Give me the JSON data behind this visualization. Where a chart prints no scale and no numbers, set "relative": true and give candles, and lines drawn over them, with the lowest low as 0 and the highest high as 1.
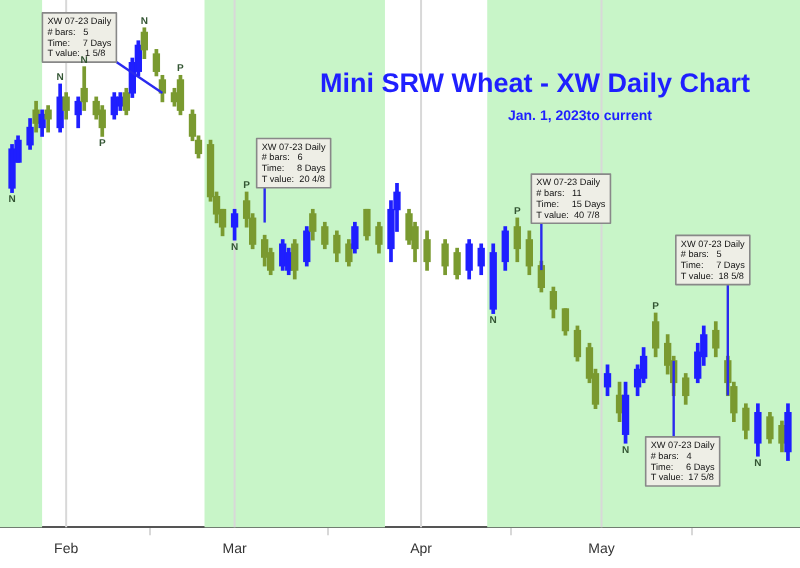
{
  "chart_data": {
    "type": "candlestick",
    "relative": true,
    "title": "Mini SRW Wheat - XW Daily Chart",
    "subtitle": "Jan. 1, 2023to current",
    "x": [
      "2023-01-23",
      "2023-01-24",
      "2023-01-26",
      "2023-01-27",
      "2023-01-28",
      "2023-01-29",
      "2023-01-31",
      "2023-02-01",
      "2023-02-03",
      "2023-02-04",
      "2023-02-06",
      "2023-02-07",
      "2023-02-09",
      "2023-02-10",
      "2023-02-11",
      "2023-02-12",
      "2023-02-13",
      "2023-02-14",
      "2023-02-16",
      "2023-02-17",
      "2023-02-19",
      "2023-02-20",
      "2023-02-22",
      "2023-02-23",
      "2023-02-25",
      "2023-02-26",
      "2023-02-27",
      "2023-03-01",
      "2023-03-03",
      "2023-03-04",
      "2023-03-06",
      "2023-03-07",
      "2023-03-09",
      "2023-03-10",
      "2023-03-11",
      "2023-03-13",
      "2023-03-14",
      "2023-03-16",
      "2023-03-18",
      "2023-03-20",
      "2023-03-21",
      "2023-03-23",
      "2023-03-25",
      "2023-03-27",
      "2023-03-28",
      "2023-03-30",
      "2023-03-31",
      "2023-04-02",
      "2023-04-05",
      "2023-04-07",
      "2023-04-09",
      "2023-04-11",
      "2023-04-13",
      "2023-04-15",
      "2023-04-17",
      "2023-04-19",
      "2023-04-21",
      "2023-04-23",
      "2023-04-25",
      "2023-04-27",
      "2023-04-29",
      "2023-04-30",
      "2023-05-02",
      "2023-05-04",
      "2023-05-05",
      "2023-05-07",
      "2023-05-08",
      "2023-05-10",
      "2023-05-12",
      "2023-05-13",
      "2023-05-15",
      "2023-05-17",
      "2023-05-18",
      "2023-05-20",
      "2023-05-22",
      "2023-05-23",
      "2023-05-25",
      "2023-05-27",
      "2023-05-29",
      "2023-05-31",
      "2023-06-01"
    ],
    "ohlc": [
      [
        0.63,
        0.73,
        0.62,
        0.72
      ],
      [
        0.69,
        0.75,
        0.69,
        0.74
      ],
      [
        0.73,
        0.79,
        0.72,
        0.77
      ],
      [
        0.81,
        0.83,
        0.76,
        0.78
      ],
      [
        0.77,
        0.81,
        0.75,
        0.8
      ],
      [
        0.81,
        0.82,
        0.76,
        0.79
      ],
      [
        0.77,
        0.87,
        0.76,
        0.84
      ],
      [
        0.84,
        0.85,
        0.79,
        0.81
      ],
      [
        0.8,
        0.84,
        0.77,
        0.83
      ],
      [
        0.86,
        0.91,
        0.81,
        0.83
      ],
      [
        0.83,
        0.84,
        0.79,
        0.8
      ],
      [
        0.81,
        0.82,
        0.75,
        0.77
      ],
      [
        0.8,
        0.85,
        0.79,
        0.84
      ],
      [
        0.82,
        0.85,
        0.81,
        0.84
      ],
      [
        0.85,
        0.86,
        0.8,
        0.81
      ],
      [
        0.85,
        0.93,
        0.84,
        0.92
      ],
      [
        0.9,
        0.97,
        0.89,
        0.96
      ],
      [
        0.99,
        1.0,
        0.93,
        0.95
      ],
      [
        0.94,
        0.95,
        0.89,
        0.9
      ],
      [
        0.88,
        0.89,
        0.83,
        0.85
      ],
      [
        0.85,
        0.86,
        0.82,
        0.83
      ],
      [
        0.88,
        0.89,
        0.8,
        0.81
      ],
      [
        0.8,
        0.81,
        0.74,
        0.75
      ],
      [
        0.74,
        0.75,
        0.7,
        0.71
      ],
      [
        0.73,
        0.74,
        0.6,
        0.61
      ],
      [
        0.61,
        0.62,
        0.55,
        0.57
      ],
      [
        0.58,
        0.58,
        0.52,
        0.54
      ],
      [
        0.54,
        0.58,
        0.51,
        0.57
      ],
      [
        0.6,
        0.62,
        0.54,
        0.56
      ],
      [
        0.56,
        0.57,
        0.49,
        0.5
      ],
      [
        0.51,
        0.52,
        0.45,
        0.47
      ],
      [
        0.48,
        0.49,
        0.43,
        0.44
      ],
      [
        0.45,
        0.51,
        0.44,
        0.5
      ],
      [
        0.44,
        0.49,
        0.43,
        0.48
      ],
      [
        0.5,
        0.51,
        0.42,
        0.44
      ],
      [
        0.46,
        0.54,
        0.45,
        0.53
      ],
      [
        0.57,
        0.58,
        0.51,
        0.53
      ],
      [
        0.54,
        0.55,
        0.49,
        0.5
      ],
      [
        0.52,
        0.53,
        0.46,
        0.48
      ],
      [
        0.5,
        0.51,
        0.45,
        0.46
      ],
      [
        0.49,
        0.55,
        0.48,
        0.54
      ],
      [
        0.58,
        0.58,
        0.51,
        0.52
      ],
      [
        0.54,
        0.55,
        0.48,
        0.5
      ],
      [
        0.49,
        0.6,
        0.46,
        0.58
      ],
      [
        0.58,
        0.64,
        0.53,
        0.62
      ],
      [
        0.57,
        0.58,
        0.5,
        0.51
      ],
      [
        0.54,
        0.55,
        0.46,
        0.49
      ],
      [
        0.51,
        0.53,
        0.44,
        0.46
      ],
      [
        0.5,
        0.51,
        0.43,
        0.45
      ],
      [
        0.48,
        0.49,
        0.42,
        0.43
      ],
      [
        0.44,
        0.51,
        0.42,
        0.5
      ],
      [
        0.45,
        0.5,
        0.43,
        0.49
      ],
      [
        0.35,
        0.5,
        0.34,
        0.48
      ],
      [
        0.46,
        0.54,
        0.44,
        0.53
      ],
      [
        0.54,
        0.56,
        0.46,
        0.49
      ],
      [
        0.51,
        0.53,
        0.43,
        0.45
      ],
      [
        0.45,
        0.46,
        0.39,
        0.4
      ],
      [
        0.39,
        0.4,
        0.33,
        0.35
      ],
      [
        0.35,
        0.35,
        0.29,
        0.3
      ],
      [
        0.3,
        0.31,
        0.23,
        0.24
      ],
      [
        0.26,
        0.27,
        0.18,
        0.19
      ],
      [
        0.2,
        0.21,
        0.12,
        0.13
      ],
      [
        0.17,
        0.22,
        0.15,
        0.2
      ],
      [
        0.15,
        0.18,
        0.09,
        0.11
      ],
      [
        0.06,
        0.18,
        0.04,
        0.15
      ],
      [
        0.17,
        0.22,
        0.15,
        0.21
      ],
      [
        0.19,
        0.26,
        0.18,
        0.24
      ],
      [
        0.32,
        0.34,
        0.24,
        0.26
      ],
      [
        0.27,
        0.29,
        0.2,
        0.22
      ],
      [
        0.23,
        0.24,
        0.15,
        0.18
      ],
      [
        0.19,
        0.2,
        0.13,
        0.15
      ],
      [
        0.19,
        0.27,
        0.18,
        0.25
      ],
      [
        0.24,
        0.31,
        0.22,
        0.29
      ],
      [
        0.3,
        0.32,
        0.24,
        0.26
      ],
      [
        0.23,
        0.24,
        0.15,
        0.18
      ],
      [
        0.17,
        0.18,
        0.09,
        0.11
      ],
      [
        0.12,
        0.13,
        0.05,
        0.07
      ],
      [
        0.04,
        0.13,
        0.01,
        0.11
      ],
      [
        0.1,
        0.11,
        0.04,
        0.05
      ],
      [
        0.08,
        0.09,
        0.02,
        0.04
      ],
      [
        0.02,
        0.13,
        0,
        0.11
      ]
    ],
    "colors": [
      "#1f1fff",
      "#1f1fff",
      "#1f1fff",
      "#7a9a30",
      "#1f1fff",
      "#7a9a30",
      "#1f1fff",
      "#7a9a30",
      "#1f1fff",
      "#7a9a30",
      "#7a9a30",
      "#7a9a30",
      "#1f1fff",
      "#1f1fff",
      "#7a9a30",
      "#1f1fff",
      "#1f1fff",
      "#7a9a30",
      "#7a9a30",
      "#7a9a30",
      "#7a9a30",
      "#7a9a30",
      "#7a9a30",
      "#7a9a30",
      "#7a9a30",
      "#7a9a30",
      "#7a9a30",
      "#1f1fff",
      "#7a9a30",
      "#7a9a30",
      "#7a9a30",
      "#7a9a30",
      "#1f1fff",
      "#1f1fff",
      "#7a9a30",
      "#1f1fff",
      "#7a9a30",
      "#7a9a30",
      "#7a9a30",
      "#7a9a30",
      "#1f1fff",
      "#7a9a30",
      "#7a9a30",
      "#1f1fff",
      "#1f1fff",
      "#7a9a30",
      "#7a9a30",
      "#7a9a30",
      "#7a9a30",
      "#7a9a30",
      "#1f1fff",
      "#1f1fff",
      "#1f1fff",
      "#1f1fff",
      "#7a9a30",
      "#7a9a30",
      "#7a9a30",
      "#7a9a30",
      "#7a9a30",
      "#7a9a30",
      "#7a9a30",
      "#7a9a30",
      "#1f1fff",
      "#7a9a30",
      "#1f1fff",
      "#1f1fff",
      "#1f1fff",
      "#7a9a30",
      "#7a9a30",
      "#7a9a30",
      "#7a9a30",
      "#1f1fff",
      "#1f1fff",
      "#7a9a30",
      "#7a9a30",
      "#7a9a30",
      "#7a9a30",
      "#1f1fff",
      "#7a9a30",
      "#7a9a30",
      "#1f1fff"
    ],
    "xlim": [
      "2023-01-21",
      "2023-06-03"
    ],
    "xticks": [
      {
        "value": "2023-02-01",
        "label": "Feb"
      },
      {
        "value": "2023-03-01",
        "label": "Mar"
      },
      {
        "value": "2023-04-01",
        "label": "Apr"
      },
      {
        "value": "2023-05-01",
        "label": "May"
      }
    ],
    "grid": "x",
    "bands": [
      {
        "axis": "x",
        "from": "2023-01-21",
        "to": "2023-01-28",
        "color": "#c8f5c8"
      },
      {
        "axis": "x",
        "from": "2023-02-24",
        "to": "2023-03-26",
        "color": "#c8f5c8"
      },
      {
        "axis": "x",
        "from": "2023-04-12",
        "to": "2023-06-03",
        "color": "#c8f5c8"
      }
    ],
    "annotations": [
      {
        "text": "XW 07-23 Daily\n# bars:   5\nTime:     7 Days\nT value:  1 5/8",
        "x": "2023-02-17",
        "y": 0.85
      },
      {
        "text": "XW 07-23 Daily\n# bars:   6\nTime:     8 Days\nT value:  20 4/8",
        "x": "2023-03-06",
        "y": 0.55
      },
      {
        "text": "XW 07-23 Daily\n# bars:   11\nTime:     15 Days\nT value:  40 7/8",
        "x": "2023-04-21",
        "y": 0.44
      },
      {
        "text": "XW 07-23 Daily\n# bars:   5\nTime:     7 Days\nT value:  18 5/8",
        "x": "2023-05-22",
        "y": 0.15
      },
      {
        "text": "XW 07-23 Daily\n# bars:   4\nTime:     6 Days\nT value:  17 5/8",
        "x": "2023-05-13",
        "y": 0.23
      },
      {
        "text": "N",
        "x": "2023-01-23",
        "y": 0.62
      },
      {
        "text": "N",
        "x": "2023-01-31",
        "y": 0.87
      },
      {
        "text": "N",
        "x": "2023-02-04",
        "y": 0.91
      },
      {
        "text": "P",
        "x": "2023-02-07",
        "y": 0.75
      },
      {
        "text": "N",
        "x": "2023-02-14",
        "y": 1.0
      },
      {
        "text": "P",
        "x": "2023-02-20",
        "y": 0.89
      },
      {
        "text": "N",
        "x": "2023-03-01",
        "y": 0.51
      },
      {
        "text": "P",
        "x": "2023-03-03",
        "y": 0.62
      },
      {
        "text": "N",
        "x": "2023-04-13",
        "y": 0.34
      },
      {
        "text": "P",
        "x": "2023-04-17",
        "y": 0.56
      },
      {
        "text": "N",
        "x": "2023-05-05",
        "y": 0.04
      },
      {
        "text": "P",
        "x": "2023-05-10",
        "y": 0.34
      },
      {
        "text": "N",
        "x": "2023-05-27",
        "y": 0.01
      }
    ]
  }
}
